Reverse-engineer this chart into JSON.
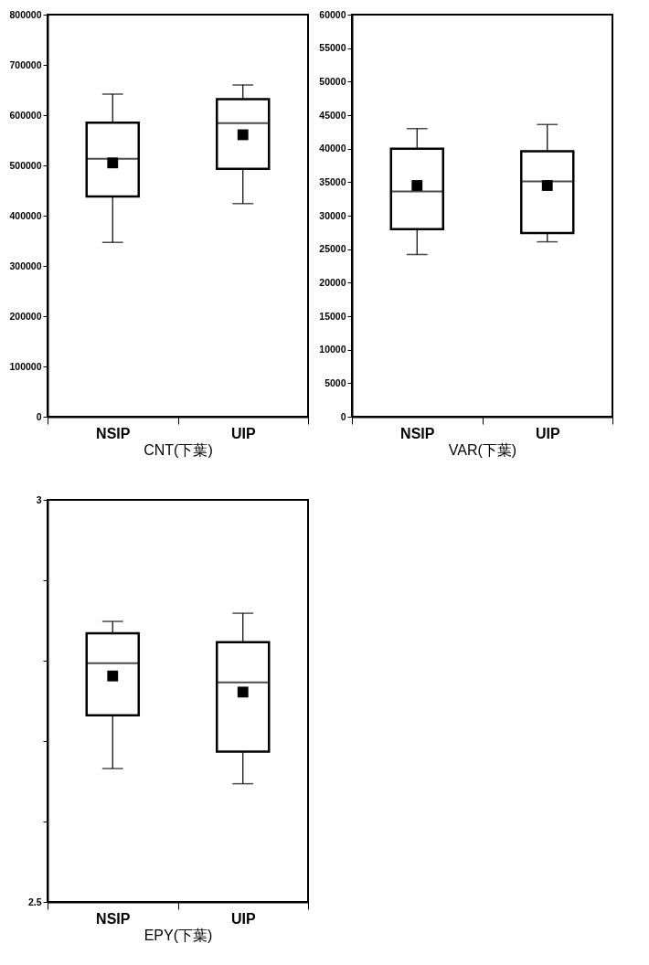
{
  "chart_data": [
    {
      "type": "box",
      "xlabel": "CNT(下葉)",
      "categories": [
        "NSIP",
        "UIP"
      ],
      "ylim": [
        0,
        800000
      ],
      "yticks": [
        0,
        100000,
        200000,
        300000,
        400000,
        500000,
        600000,
        700000,
        800000
      ],
      "grid": false,
      "color": "#000000",
      "boxes": [
        {
          "low": 347000,
          "q1": 438000,
          "median": 513000,
          "q3": 585000,
          "high": 642000,
          "mean": 505000
        },
        {
          "low": 424000,
          "q1": 493000,
          "median": 584000,
          "q3": 632000,
          "high": 660000,
          "mean": 561000
        }
      ]
    },
    {
      "type": "box",
      "xlabel": "VAR(下葉)",
      "categories": [
        "NSIP",
        "UIP"
      ],
      "ylim": [
        0,
        60000
      ],
      "yticks": [
        0,
        5000,
        10000,
        15000,
        20000,
        25000,
        30000,
        35000,
        40000,
        45000,
        50000,
        55000,
        60000
      ],
      "grid": false,
      "color": "#000000",
      "boxes": [
        {
          "low": 24200,
          "q1": 28000,
          "median": 33600,
          "q3": 40000,
          "high": 43000,
          "mean": 34500
        },
        {
          "low": 26100,
          "q1": 27400,
          "median": 35100,
          "q3": 39600,
          "high": 43600,
          "mean": 34500
        }
      ]
    },
    {
      "type": "box",
      "xlabel": "EPY(下葉)",
      "categories": [
        "NSIP",
        "UIP"
      ],
      "ylim": [
        2.5,
        3
      ],
      "yticks": [
        2.5,
        {
          "value": 2.6,
          "label": null
        },
        {
          "value": 2.7,
          "label": null
        },
        {
          "value": 2.8,
          "label": null
        },
        {
          "value": 2.9,
          "label": null
        },
        3
      ],
      "grid": false,
      "color": "#000000",
      "boxes": [
        {
          "low": 2.666,
          "q1": 2.732,
          "median": 2.797,
          "q3": 2.834,
          "high": 2.849,
          "mean": 2.781
        },
        {
          "low": 2.647,
          "q1": 2.687,
          "median": 2.773,
          "q3": 2.823,
          "high": 2.859,
          "mean": 2.761
        }
      ]
    }
  ]
}
